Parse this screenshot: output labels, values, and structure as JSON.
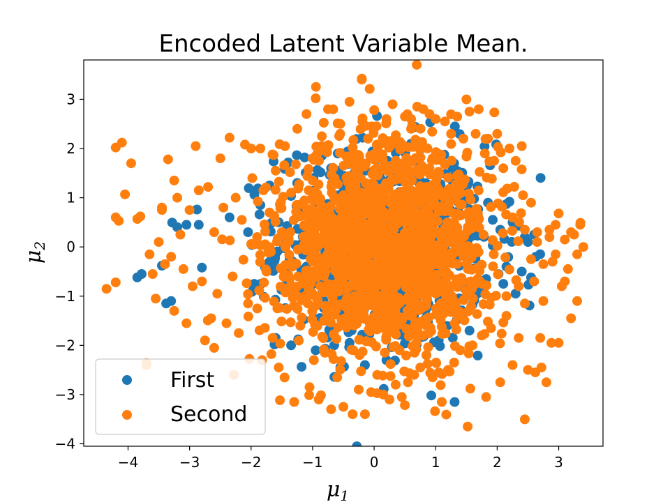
{
  "chart_data": {
    "type": "scatter",
    "title": "Encoded Latent Variable Mean.",
    "xlabel": "μ",
    "xlabel_sub": "1",
    "ylabel": "μ",
    "ylabel_sub": "2",
    "xlim": [
      -4.72,
      3.72
    ],
    "ylim": [
      -4.05,
      3.8
    ],
    "xticks": [
      -4,
      -3,
      -2,
      -1,
      0,
      1,
      2,
      3
    ],
    "yticks": [
      -4,
      -3,
      -2,
      -1,
      0,
      1,
      2,
      3
    ],
    "xtick_labels": [
      "−4",
      "−3",
      "−2",
      "−1",
      "0",
      "1",
      "2",
      "3"
    ],
    "ytick_labels": [
      "−4",
      "−3",
      "−2",
      "−1",
      "0",
      "1",
      "2",
      "3"
    ],
    "grid": false,
    "legend_position": "lower-left",
    "series": [
      {
        "name": "First",
        "color": "#1f77b4",
        "points": [
          [
            -3.85,
            -0.62
          ],
          [
            -3.78,
            -0.55
          ],
          [
            -3.45,
            -0.38
          ],
          [
            -3.38,
            -1.15
          ],
          [
            -3.3,
            -1.1
          ],
          [
            -3.2,
            0.4
          ],
          [
            -3.05,
            0.45
          ],
          [
            -2.88,
            0.76
          ],
          [
            -2.85,
            0.45
          ],
          [
            -2.8,
            -0.42
          ],
          [
            -2.35,
            0.6
          ],
          [
            -2.05,
            0.3
          ],
          [
            -1.95,
            -0.75
          ],
          [
            -1.85,
            0.85
          ],
          [
            -1.55,
            0.5
          ],
          [
            -1.7,
            -0.3
          ],
          [
            -1.6,
            -1.85
          ],
          [
            -1.4,
            0.2
          ],
          [
            -1.35,
            -2.0
          ],
          [
            -1.25,
            1.3
          ],
          [
            -1.2,
            -0.9
          ],
          [
            -0.95,
            -2.1
          ],
          [
            -0.85,
            1.85
          ],
          [
            -0.7,
            1.6
          ],
          [
            -0.65,
            -2.0
          ],
          [
            -0.4,
            -1.95
          ],
          [
            -0.15,
            -2.4
          ],
          [
            0.2,
            -2.3
          ],
          [
            0.6,
            2.1
          ],
          [
            0.85,
            -2.2
          ],
          [
            1.05,
            -1.9
          ],
          [
            1.3,
            1.7
          ],
          [
            1.55,
            -1.7
          ],
          [
            1.7,
            0.4
          ],
          [
            1.85,
            0.9
          ],
          [
            2.05,
            0.35
          ],
          [
            2.15,
            -0.4
          ],
          [
            2.2,
            0.92
          ],
          [
            2.25,
            0.5
          ],
          [
            2.35,
            0.43
          ],
          [
            2.4,
            -0.5
          ],
          [
            2.45,
            0.2
          ],
          [
            2.5,
            0.1
          ],
          [
            2.55,
            -0.62
          ],
          [
            2.6,
            0.25
          ],
          [
            2.1,
            -0.75
          ],
          [
            2.3,
            -0.95
          ],
          [
            -0.1,
            0.5
          ],
          [
            0.3,
            -0.4
          ],
          [
            0.5,
            0.8
          ],
          [
            -0.5,
            0.3
          ],
          [
            0.8,
            -0.6
          ],
          [
            1.2,
            0.4
          ],
          [
            -1.1,
            -0.4
          ],
          [
            1.5,
            0.9
          ]
        ]
      },
      {
        "name": "Second",
        "color": "#ff7f0e",
        "points": [
          [
            -4.35,
            -0.85
          ],
          [
            -4.2,
            -0.72
          ],
          [
            -4.2,
            2.02
          ],
          [
            -4.1,
            2.12
          ],
          [
            -4.05,
            1.07
          ],
          [
            -4.2,
            0.6
          ],
          [
            -4.15,
            0.53
          ],
          [
            -3.95,
            1.7
          ],
          [
            -3.85,
            0.57
          ],
          [
            -3.8,
            0.62
          ],
          [
            -3.7,
            -2.4
          ],
          [
            -3.7,
            -2.36
          ],
          [
            -3.65,
            -0.15
          ],
          [
            -3.6,
            -0.55
          ],
          [
            -3.55,
            -1.05
          ],
          [
            -3.5,
            0.1
          ],
          [
            -3.45,
            0.8
          ],
          [
            -3.45,
            0.75
          ],
          [
            -3.4,
            -0.35
          ],
          [
            -3.35,
            1.78
          ],
          [
            -3.3,
            -0.2
          ],
          [
            -3.25,
            1.35
          ],
          [
            -3.25,
            -1.3
          ],
          [
            -3.2,
            1.0
          ],
          [
            -3.15,
            0.25
          ],
          [
            -3.1,
            -0.45
          ],
          [
            -3.05,
            -1.55
          ],
          [
            -3.0,
            0.75
          ],
          [
            -2.95,
            -0.8
          ],
          [
            -2.9,
            2.05
          ],
          [
            -2.85,
            1.15
          ],
          [
            -2.8,
            -0.7
          ],
          [
            -2.75,
            -1.9
          ],
          [
            -2.7,
            1.22
          ],
          [
            -2.65,
            -1.45
          ],
          [
            -2.6,
            0.3
          ],
          [
            -2.6,
            -2.05
          ],
          [
            -2.55,
            -0.95
          ],
          [
            -2.5,
            1.8
          ],
          [
            -2.45,
            0.8
          ],
          [
            -2.4,
            -1.55
          ],
          [
            -2.35,
            2.22
          ],
          [
            -2.3,
            -0.6
          ],
          [
            -2.28,
            -2.6
          ],
          [
            -2.25,
            1.0
          ],
          [
            -2.2,
            -1.75
          ],
          [
            -2.15,
            0.55
          ],
          [
            -2.1,
            2.08
          ],
          [
            -2.05,
            -1.15
          ],
          [
            -2.0,
            2.0
          ],
          [
            -1.98,
            1.4
          ],
          [
            -1.95,
            0.05
          ],
          [
            -1.9,
            -1.25
          ],
          [
            -1.85,
            2.0
          ],
          [
            -1.82,
            -2.3
          ],
          [
            -1.8,
            1.15
          ],
          [
            -1.75,
            -0.5
          ],
          [
            -1.7,
            0.7
          ],
          [
            -1.65,
            -1.85
          ],
          [
            -1.6,
            1.55
          ],
          [
            -1.55,
            -2.45
          ],
          [
            -1.5,
            0.3
          ],
          [
            -1.45,
            2.05
          ],
          [
            -1.4,
            -0.9
          ],
          [
            -1.35,
            1.1
          ],
          [
            -1.3,
            -3.15
          ],
          [
            -1.25,
            2.4
          ],
          [
            -1.2,
            -1.6
          ],
          [
            -1.15,
            0.0
          ],
          [
            -1.1,
            2.7
          ],
          [
            -1.05,
            -2.85
          ],
          [
            -1.0,
            1.8
          ],
          [
            -0.98,
            -2.3
          ],
          [
            -0.95,
            3.02
          ],
          [
            -0.9,
            -3.1
          ],
          [
            -0.85,
            2.25
          ],
          [
            -0.8,
            -1.2
          ],
          [
            -0.75,
            2.8
          ],
          [
            -0.7,
            -3.3
          ],
          [
            -0.65,
            1.0
          ],
          [
            -0.6,
            -2.65
          ],
          [
            -0.55,
            2.5
          ],
          [
            -0.5,
            -3.25
          ],
          [
            -0.45,
            -0.5
          ],
          [
            -0.4,
            2.95
          ],
          [
            -0.35,
            -3.4
          ],
          [
            -0.3,
            1.6
          ],
          [
            -0.25,
            -2.9
          ],
          [
            -0.2,
            3.4
          ],
          [
            -0.15,
            -3.4
          ],
          [
            -0.1,
            2.2
          ],
          [
            -0.05,
            -2.95
          ],
          [
            0.0,
            2.78
          ],
          [
            0.05,
            -2.6
          ],
          [
            0.1,
            0.5
          ],
          [
            0.15,
            -3.0
          ],
          [
            0.2,
            2.6
          ],
          [
            0.25,
            -3.1
          ],
          [
            0.3,
            2.9
          ],
          [
            0.35,
            -2.8
          ],
          [
            0.4,
            -1.5
          ],
          [
            0.45,
            -3.05
          ],
          [
            0.5,
            2.65
          ],
          [
            0.55,
            -2.75
          ],
          [
            0.6,
            2.4
          ],
          [
            0.65,
            -2.6
          ],
          [
            0.7,
            2.85
          ],
          [
            0.75,
            -2.45
          ],
          [
            0.8,
            2.8
          ],
          [
            0.85,
            -2.2
          ],
          [
            0.9,
            2.7
          ],
          [
            0.95,
            -2.65
          ],
          [
            1.0,
            2.6
          ],
          [
            1.05,
            -2.55
          ],
          [
            1.1,
            -3.15
          ],
          [
            1.15,
            2.55
          ],
          [
            1.2,
            -2.5
          ],
          [
            1.25,
            2.3
          ],
          [
            1.3,
            -2.35
          ],
          [
            1.35,
            2.65
          ],
          [
            1.4,
            -2.1
          ],
          [
            1.45,
            2.2
          ],
          [
            1.5,
            3.0
          ],
          [
            1.52,
            -3.65
          ],
          [
            1.55,
            2.75
          ],
          [
            1.6,
            -2.0
          ],
          [
            1.65,
            2.3
          ],
          [
            1.7,
            2.8
          ],
          [
            1.75,
            -1.8
          ],
          [
            1.8,
            1.9
          ],
          [
            1.82,
            -3.05
          ],
          [
            1.85,
            2.2
          ],
          [
            1.9,
            -1.65
          ],
          [
            1.95,
            1.75
          ],
          [
            2.0,
            2.3
          ],
          [
            2.05,
            -2.75
          ],
          [
            2.1,
            1.6
          ],
          [
            2.15,
            -1.4
          ],
          [
            2.2,
            2.0
          ],
          [
            2.25,
            -2.4
          ],
          [
            2.3,
            1.75
          ],
          [
            2.35,
            -1.85
          ],
          [
            2.4,
            2.05
          ],
          [
            2.42,
            1.05
          ],
          [
            2.45,
            -1.15
          ],
          [
            2.5,
            -2.5
          ],
          [
            2.55,
            0.9
          ],
          [
            2.6,
            -0.7
          ],
          [
            2.62,
            -2.55
          ],
          [
            2.65,
            0.3
          ],
          [
            2.7,
            -1.85
          ],
          [
            2.72,
            -2.45
          ],
          [
            2.75,
            -1.1
          ],
          [
            2.8,
            -2.75
          ],
          [
            2.85,
            0.2
          ],
          [
            2.88,
            -1.95
          ],
          [
            2.9,
            -0.3
          ],
          [
            2.95,
            0.45
          ],
          [
            3.0,
            0.68
          ],
          [
            3.0,
            -1.95
          ],
          [
            3.05,
            -0.8
          ],
          [
            3.1,
            0.15
          ],
          [
            3.15,
            -0.45
          ],
          [
            3.2,
            -1.45
          ],
          [
            3.25,
            0.25
          ],
          [
            3.3,
            -1.1
          ],
          [
            3.35,
            0.45
          ],
          [
            3.4,
            0.0
          ],
          [
            3.3,
            -0.15
          ],
          [
            3.2,
            0.3
          ],
          [
            3.1,
            -0.7
          ],
          [
            2.95,
            -0.15
          ],
          [
            2.85,
            0.35
          ],
          [
            2.75,
            -0.35
          ],
          [
            2.65,
            0.1
          ],
          [
            2.55,
            -0.25
          ],
          [
            2.45,
            0.35
          ],
          [
            2.35,
            -0.8
          ],
          [
            2.25,
            0.6
          ],
          [
            2.15,
            -1.0
          ],
          [
            -0.2,
            3.42
          ]
        ]
      }
    ]
  },
  "legend": {
    "items": [
      {
        "label": "First",
        "color": "#1f77b4"
      },
      {
        "label": "Second",
        "color": "#ff7f0e"
      }
    ]
  }
}
